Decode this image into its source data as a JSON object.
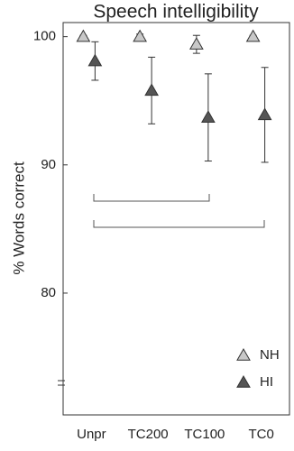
{
  "chart_data": {
    "type": "errorbar",
    "title": "Speech intelligibility",
    "y_label": "% Words correct",
    "categories": [
      "Unpr",
      "TC200",
      "TC100",
      "TC0"
    ],
    "series": [
      {
        "name": "NH",
        "color": "#c8c8c8",
        "values": [
          100,
          100,
          99.4,
          100
        ],
        "errors": [
          0.1,
          0.2,
          0.7,
          0.1
        ]
      },
      {
        "name": "HI",
        "color": "#555555",
        "values": [
          98.1,
          95.8,
          93.7,
          93.9
        ],
        "errors": [
          1.5,
          2.6,
          3.4,
          3.7
        ]
      }
    ],
    "ylim": [
      70.5,
      101.1
    ],
    "yticks": [
      80,
      90,
      100
    ],
    "legend": "lower right"
  }
}
